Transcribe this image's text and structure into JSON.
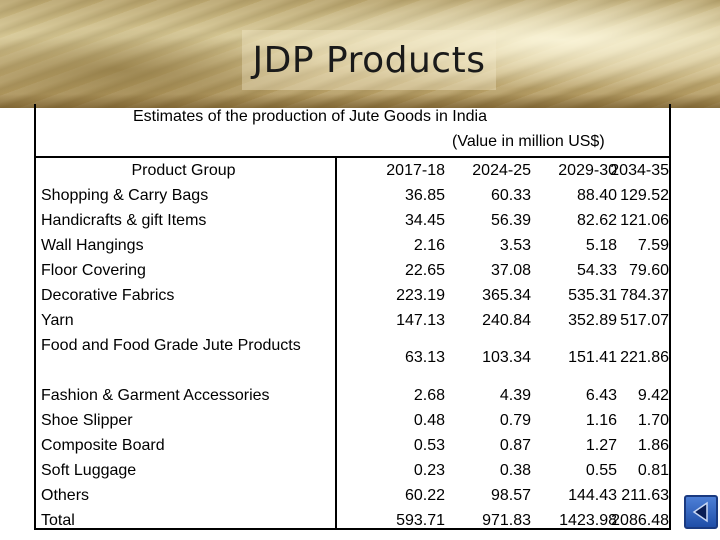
{
  "slide": {
    "title": "JDP Products",
    "caption_line1": "Estimates of the production of Jute Goods in India",
    "caption_line2": "(Value in million US$)"
  },
  "table": {
    "headers": [
      "Product Group",
      "2017-18",
      "2024-25",
      "2029-30",
      "2034-35"
    ],
    "rows": [
      {
        "name": "Shopping & Carry Bags",
        "values": [
          "36.85",
          "60.33",
          "88.40",
          "129.52"
        ]
      },
      {
        "name": "Handicrafts & gift Items",
        "values": [
          "34.45",
          "56.39",
          "82.62",
          "121.06"
        ]
      },
      {
        "name": "Wall Hangings",
        "values": [
          "2.16",
          "3.53",
          "5.18",
          "7.59"
        ]
      },
      {
        "name": "Floor Covering",
        "values": [
          "22.65",
          "37.08",
          "54.33",
          "79.60"
        ]
      },
      {
        "name": "Decorative Fabrics",
        "values": [
          "223.19",
          "365.34",
          "535.31",
          "784.37"
        ]
      },
      {
        "name": "Yarn",
        "values": [
          "147.13",
          "240.84",
          "352.89",
          "517.07"
        ]
      },
      {
        "name": "Food and Food Grade Jute Products",
        "values": [
          "63.13",
          "103.34",
          "151.41",
          "221.86"
        ]
      },
      {
        "name": "Fashion & Garment Accessories",
        "values": [
          "2.68",
          "4.39",
          "6.43",
          "9.42"
        ]
      },
      {
        "name": "Shoe Slipper",
        "values": [
          "0.48",
          "0.79",
          "1.16",
          "1.70"
        ]
      },
      {
        "name": "Composite Board",
        "values": [
          "0.53",
          "0.87",
          "1.27",
          "1.86"
        ]
      },
      {
        "name": "Soft Luggage",
        "values": [
          "0.23",
          "0.38",
          "0.55",
          "0.81"
        ]
      },
      {
        "name": "Others",
        "values": [
          "60.22",
          "98.57",
          "144.43",
          "211.63"
        ]
      },
      {
        "name": "Total",
        "values": [
          "593.71",
          "971.83",
          "1423.98",
          "2086.48"
        ]
      }
    ]
  },
  "nav": {
    "icon": "back-arrow-icon",
    "color": "#2a5ec0"
  }
}
